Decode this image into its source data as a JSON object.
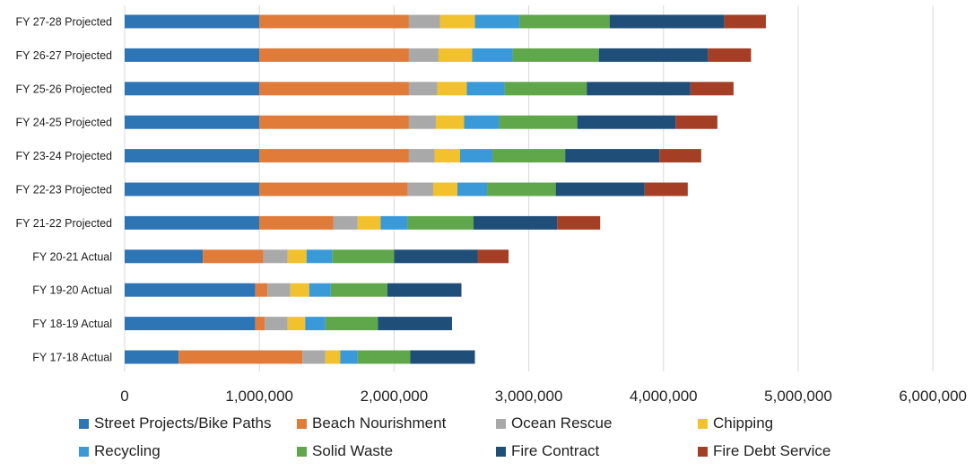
{
  "chart_data": {
    "type": "bar",
    "orientation": "horizontal",
    "stacked": true,
    "categories": [
      "FY 27-28 Projected",
      "FY 26-27 Projected",
      "FY 25-26 Projected",
      "FY 24-25 Projected",
      "FY 23-24 Projected",
      "FY 22-23 Projected",
      "FY 21-22 Projected",
      "FY 20-21 Actual",
      "FY 19-20 Actual",
      "FY 18-19 Actual",
      "FY 17-18 Actual"
    ],
    "series": [
      {
        "name": "Street Projects/Bike Paths",
        "color": "#2E75B6",
        "values": [
          1000000,
          1000000,
          1000000,
          1000000,
          1000000,
          1000000,
          1000000,
          580000,
          970000,
          970000,
          400000
        ]
      },
      {
        "name": "Beach Nourishment",
        "color": "#E07B39",
        "values": [
          1110000,
          1110000,
          1110000,
          1110000,
          1110000,
          1100000,
          550000,
          450000,
          90000,
          70000,
          920000
        ]
      },
      {
        "name": "Ocean Rescue",
        "color": "#A9A9A9",
        "values": [
          230000,
          220000,
          210000,
          200000,
          190000,
          190000,
          180000,
          180000,
          170000,
          170000,
          170000
        ]
      },
      {
        "name": "Chipping",
        "color": "#F2C12E",
        "values": [
          260000,
          250000,
          220000,
          210000,
          190000,
          180000,
          170000,
          140000,
          140000,
          130000,
          110000
        ]
      },
      {
        "name": "Recycling",
        "color": "#3A9AD9",
        "values": [
          330000,
          300000,
          280000,
          260000,
          240000,
          220000,
          200000,
          190000,
          160000,
          150000,
          130000
        ]
      },
      {
        "name": "Solid Waste",
        "color": "#5FA74A",
        "values": [
          670000,
          640000,
          610000,
          580000,
          540000,
          510000,
          490000,
          460000,
          420000,
          390000,
          390000
        ]
      },
      {
        "name": "Fire Contract",
        "color": "#1F4E79",
        "values": [
          850000,
          810000,
          770000,
          730000,
          700000,
          660000,
          620000,
          620000,
          550000,
          550000,
          480000
        ]
      },
      {
        "name": "Fire Debt Service",
        "color": "#A43F26",
        "values": [
          310000,
          320000,
          320000,
          310000,
          310000,
          320000,
          320000,
          230000,
          0,
          0,
          0
        ]
      }
    ],
    "xlim": [
      0,
      6000000
    ],
    "xticks": [
      "0",
      "1,000,000",
      "2,000,000",
      "3,000,000",
      "4,000,000",
      "5,000,000",
      "6,000,000"
    ],
    "grid": true,
    "legend_position": "bottom"
  }
}
